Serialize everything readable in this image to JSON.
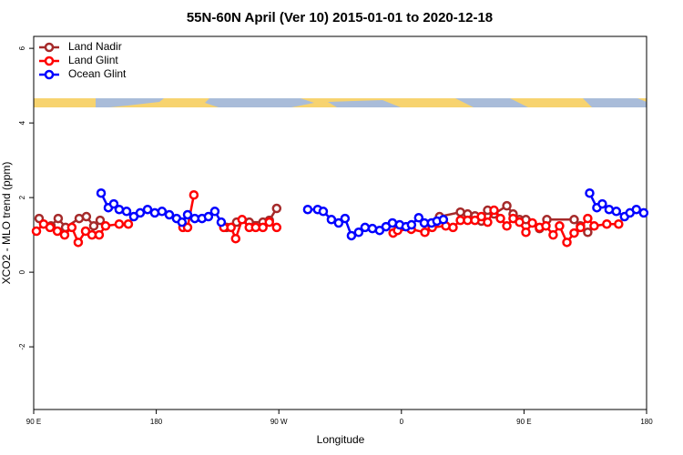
{
  "chart_data": {
    "type": "line",
    "title": "55N-60N April (Ver 10)   2015-01-01 to 2020-12-18",
    "x_label": "Longitude",
    "y_label": "XCO2 - MLO trend (ppm)",
    "xlim": [
      90,
      540
    ],
    "ylim": [
      -3.68,
      6.32
    ],
    "xticks": [
      {
        "value": 90,
        "label": "90 E"
      },
      180,
      {
        "value": 270,
        "label": "90 W"
      },
      {
        "value": 360,
        "label": "0"
      },
      {
        "value": 450,
        "label": "90 E"
      },
      {
        "value": 540,
        "label": "180"
      }
    ],
    "yticks": [
      -2,
      0,
      2,
      4,
      6
    ],
    "legend": "top-left",
    "series": [
      {
        "name": "Land Nadir",
        "color": "#a52a2a",
        "x": [
          94,
          102.7,
          108,
          113.4,
          123.4,
          128.7,
          134.1,
          138.8,
          null,
          231.6,
          239,
          248.3,
          258.3,
          263,
          268.4,
          null,
          383.3,
          388,
          403.3,
          408.6,
          414,
          418.7,
          423.3,
          428,
          437.4,
          442,
          446.7,
          451.4,
          461.4,
          466.8,
          486.8,
          491.5,
          496.8
        ],
        "values": [
          1.44,
          1.24,
          1.44,
          1.2,
          1.44,
          1.49,
          1.24,
          1.39,
          null,
          1.2,
          1.34,
          1.34,
          1.34,
          1.39,
          1.71,
          null,
          1.32,
          1.49,
          1.61,
          1.56,
          1.51,
          1.37,
          1.66,
          1.56,
          1.78,
          1.56,
          1.41,
          1.41,
          1.17,
          1.41,
          1.41,
          1.24,
          1.07
        ]
      },
      {
        "name": "Land Glint",
        "color": "#ff0000",
        "x": [
          92,
          97.3,
          102,
          107.4,
          112.7,
          118,
          122.7,
          128.1,
          132.8,
          138.1,
          142.8,
          152.8,
          159.5,
          null,
          199.6,
          203,
          207.6,
          null,
          229.6,
          234.9,
          238.3,
          243,
          248.3,
          253,
          258.3,
          263,
          268.4,
          null,
          353.9,
          357.2,
          367.2,
          377.2,
          382.6,
          392.6,
          397.9,
          403.3,
          408.6,
          414,
          418.7,
          423.3,
          428,
          432.7,
          437.4,
          442,
          446.7,
          451.4,
          456.1,
          461.4,
          466.1,
          471.4,
          476.1,
          481.5,
          486.8,
          491.5,
          496.8,
          501.5,
          510.8,
          519.5
        ],
        "values": [
          1.1,
          1.29,
          1.2,
          1.1,
          1.0,
          1.2,
          0.8,
          1.1,
          1.0,
          1.0,
          1.24,
          1.29,
          1.29,
          null,
          1.2,
          1.2,
          2.07,
          null,
          1.2,
          1.2,
          0.9,
          1.41,
          1.2,
          1.2,
          1.2,
          1.34,
          1.2,
          null,
          1.05,
          1.12,
          1.15,
          1.07,
          1.2,
          1.24,
          1.2,
          1.39,
          1.39,
          1.39,
          1.49,
          1.34,
          1.66,
          1.44,
          1.24,
          1.44,
          1.34,
          1.07,
          1.32,
          1.2,
          1.24,
          1.0,
          1.24,
          0.8,
          1.05,
          1.2,
          1.44,
          1.24,
          1.29,
          1.29
        ]
      },
      {
        "name": "Ocean Glint",
        "color": "#0000ff",
        "x": [
          139.5,
          144.8,
          148.8,
          152.8,
          158.2,
          163.5,
          168.2,
          173.6,
          178.9,
          184.2,
          189.6,
          194.9,
          198.9,
          203,
          208.3,
          213.6,
          218.3,
          223,
          227.7,
          null,
          291.2,
          298.5,
          302.6,
          308.6,
          313.9,
          318.6,
          323.3,
          328.6,
          333.3,
          338.7,
          344,
          348.7,
          353.4,
          358.7,
          363.4,
          367.4,
          372.7,
          376.8,
          382.1,
          386.1,
          390.8,
          null,
          498.2,
          503.5,
          507.5,
          512.5,
          517.8,
          523.8,
          527.8,
          532.5,
          537.9
        ],
        "values": [
          2.12,
          1.73,
          1.83,
          1.68,
          1.63,
          1.49,
          1.59,
          1.68,
          1.59,
          1.63,
          1.54,
          1.44,
          1.34,
          1.54,
          1.44,
          1.44,
          1.49,
          1.63,
          1.34,
          null,
          1.68,
          1.68,
          1.63,
          1.41,
          1.32,
          1.44,
          0.98,
          1.07,
          1.2,
          1.17,
          1.12,
          1.22,
          1.32,
          1.27,
          1.22,
          1.27,
          1.46,
          1.32,
          1.32,
          1.37,
          1.41,
          null,
          2.12,
          1.73,
          1.83,
          1.68,
          1.63,
          1.49,
          1.59,
          1.68,
          1.59
        ]
      }
    ]
  }
}
